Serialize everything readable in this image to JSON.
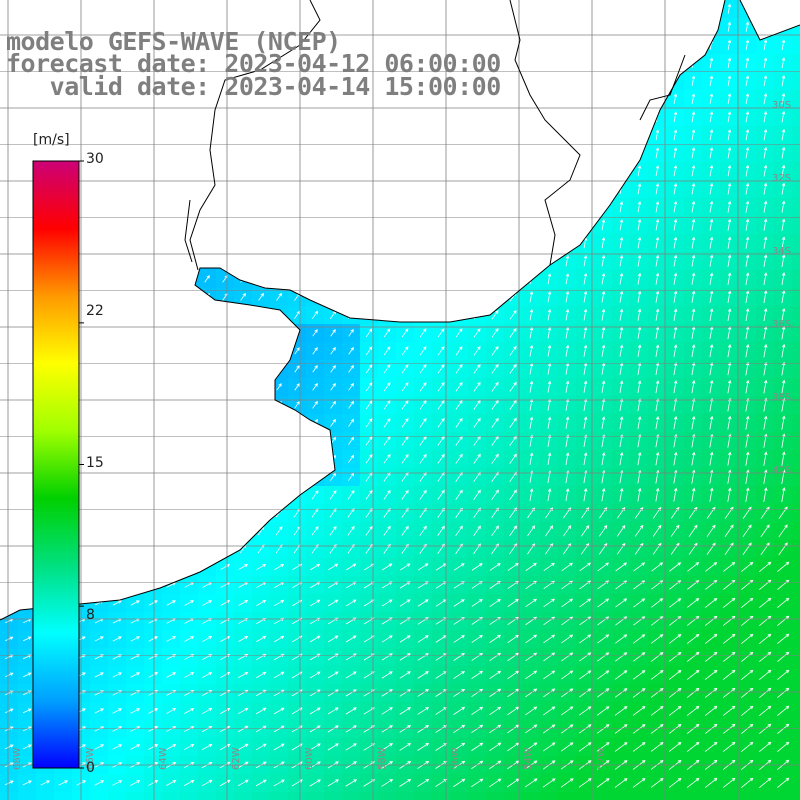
{
  "title": {
    "line1": "modelo GEFS-WAVE (NCEP)",
    "line2": "forecast date: 2023-04-12 06:00:00",
    "line3": "   valid date: 2023-04-14 15:00:00"
  },
  "colorbar": {
    "unit": "[m/s]",
    "ticks": [
      "30",
      "22",
      "15",
      "8",
      "0"
    ],
    "tick_values": [
      30,
      22,
      15,
      8,
      0
    ],
    "min": 0,
    "max": 30,
    "colors": [
      "#0000ff",
      "#00a0ff",
      "#00ffff",
      "#00e080",
      "#00d000",
      "#a0ff00",
      "#ffff00",
      "#ff9900",
      "#ff0000",
      "#cc0077"
    ]
  },
  "map": {
    "land_color": "#ffffff",
    "coastline_color": "#000000",
    "grid_color": "#808080",
    "arrow_color": "#ffffff",
    "field": "wind speed",
    "right_lat_labels": [
      "30S",
      "32S",
      "34S",
      "36S",
      "38S",
      "40S"
    ],
    "bottom_lon_labels": [
      "68W",
      "66W",
      "64W",
      "62W",
      "60W",
      "58W",
      "56W",
      "54W",
      "52W"
    ]
  }
}
